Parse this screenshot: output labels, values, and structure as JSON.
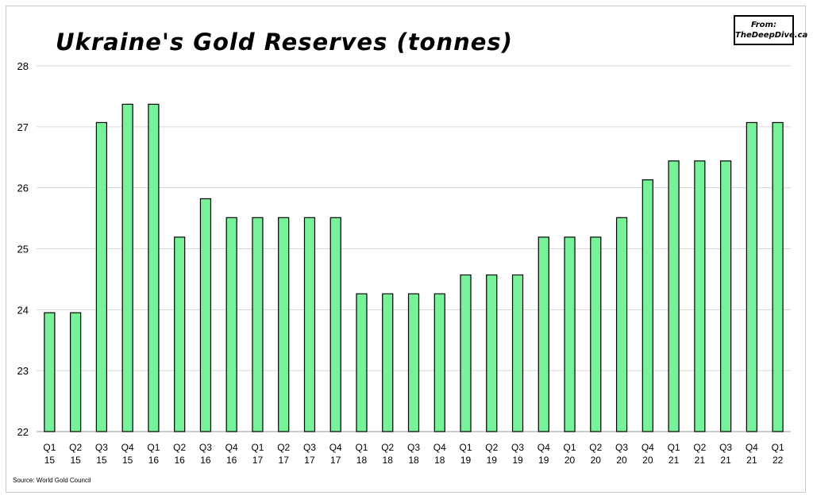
{
  "title": "Ukraine's Gold Reserves (tonnes)",
  "badge": {
    "line1": "From:",
    "line2": "TheDeepDive.ca"
  },
  "source": "Source: World Gold Council",
  "colors": {
    "bar_fill": "#77f29a",
    "bar_stroke": "#000000",
    "grid": "#d6d6d6",
    "axis": "#9a9a9a"
  },
  "chart_data": {
    "type": "bar",
    "title": "Ukraine's Gold Reserves (tonnes)",
    "xlabel": "",
    "ylabel": "",
    "ylim": [
      22,
      28
    ],
    "yticks": [
      22,
      23,
      24,
      25,
      26,
      27,
      28
    ],
    "grid": true,
    "categories": [
      [
        "Q1",
        "15"
      ],
      [
        "Q2",
        "15"
      ],
      [
        "Q3",
        "15"
      ],
      [
        "Q4",
        "15"
      ],
      [
        "Q1",
        "16"
      ],
      [
        "Q2",
        "16"
      ],
      [
        "Q3",
        "16"
      ],
      [
        "Q4",
        "16"
      ],
      [
        "Q1",
        "17"
      ],
      [
        "Q2",
        "17"
      ],
      [
        "Q3",
        "17"
      ],
      [
        "Q4",
        "17"
      ],
      [
        "Q1",
        "18"
      ],
      [
        "Q2",
        "18"
      ],
      [
        "Q3",
        "18"
      ],
      [
        "Q4",
        "18"
      ],
      [
        "Q1",
        "19"
      ],
      [
        "Q2",
        "19"
      ],
      [
        "Q3",
        "19"
      ],
      [
        "Q4",
        "19"
      ],
      [
        "Q1",
        "20"
      ],
      [
        "Q2",
        "20"
      ],
      [
        "Q3",
        "20"
      ],
      [
        "Q4",
        "20"
      ],
      [
        "Q1",
        "21"
      ],
      [
        "Q2",
        "21"
      ],
      [
        "Q3",
        "21"
      ],
      [
        "Q4",
        "21"
      ],
      [
        "Q1",
        "22"
      ]
    ],
    "values": [
      23.95,
      23.95,
      27.07,
      27.37,
      27.37,
      25.19,
      25.82,
      25.51,
      25.51,
      25.51,
      25.51,
      25.51,
      24.26,
      24.26,
      24.26,
      24.26,
      24.57,
      24.57,
      24.57,
      25.19,
      25.19,
      25.19,
      25.51,
      26.13,
      26.44,
      26.44,
      26.44,
      27.07,
      27.07
    ]
  }
}
